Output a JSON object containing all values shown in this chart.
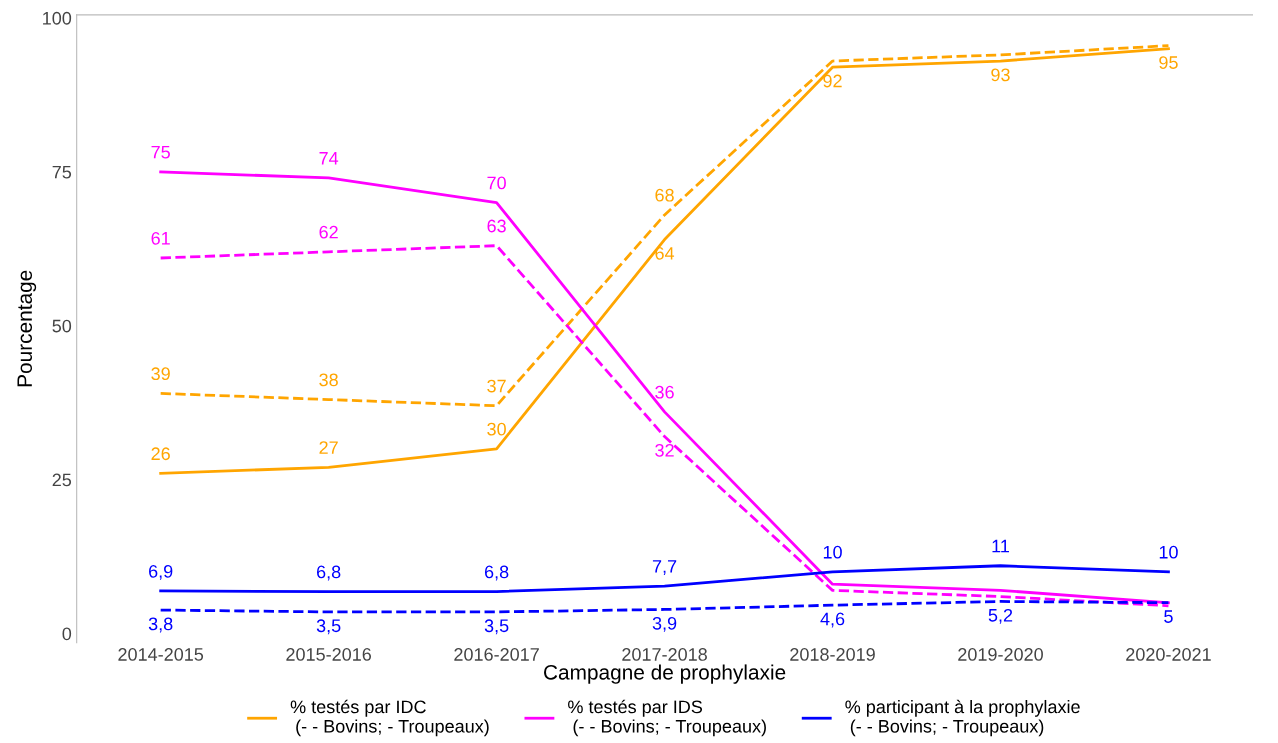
{
  "chart_data": {
    "type": "line",
    "xlabel": "Campagne de prophylaxie",
    "ylabel": "Pourcentage",
    "categories": [
      "2014-2015",
      "2015-2016",
      "2016-2017",
      "2017-2018",
      "2018-2019",
      "2019-2020",
      "2020-2021"
    ],
    "ylim": [
      -1.5,
      100.5
    ],
    "yticks": [
      0,
      25,
      50,
      75,
      100
    ],
    "grid": false,
    "legend": "bottom",
    "marker": "none",
    "series": [
      {
        "name": "% testés par IDC\n (- - Bovins; - Troupeaux)",
        "color": "#ffa500",
        "line_style": "solid",
        "values": [
          26,
          27,
          30,
          64,
          92,
          93,
          95
        ],
        "value_labels": [
          "26",
          "27",
          "30",
          "64",
          "92",
          "93",
          "95"
        ]
      },
      {
        "color": "#ffa500",
        "line_style": "dashed",
        "values": [
          39,
          38,
          37,
          68,
          93,
          94,
          95.5
        ],
        "value_labels": [
          "39",
          "38",
          "37",
          "68",
          null,
          null,
          null
        ]
      },
      {
        "name": "% testés par IDS\n (- - Bovins; - Troupeaux)",
        "color": "#ff00ff",
        "line_style": "solid",
        "values": [
          75,
          74,
          70,
          36,
          8,
          7,
          5
        ],
        "value_labels": [
          "75",
          "74",
          "70",
          "36",
          null,
          null,
          null
        ]
      },
      {
        "color": "#ff00ff",
        "line_style": "dashed",
        "values": [
          61,
          62,
          63,
          32,
          7,
          6,
          4.5
        ],
        "value_labels": [
          "61",
          "62",
          "63",
          "32",
          null,
          null,
          null
        ]
      },
      {
        "name": "% participant à la prophylaxie\n (- - Bovins; - Troupeaux)",
        "color": "#0000ff",
        "line_style": "solid",
        "values": [
          6.9,
          6.8,
          6.8,
          7.7,
          10,
          11,
          10
        ],
        "value_labels": [
          "6,9",
          "6,8",
          "6,8",
          "7,7",
          "10",
          "11",
          "10"
        ]
      },
      {
        "color": "#0000ff",
        "line_style": "dashed",
        "values": [
          3.8,
          3.5,
          3.5,
          3.9,
          4.6,
          5.2,
          5
        ],
        "value_labels": [
          "3,8",
          "3,5",
          "3,5",
          "3,9",
          "4,6",
          "5,2",
          "5"
        ]
      }
    ]
  }
}
